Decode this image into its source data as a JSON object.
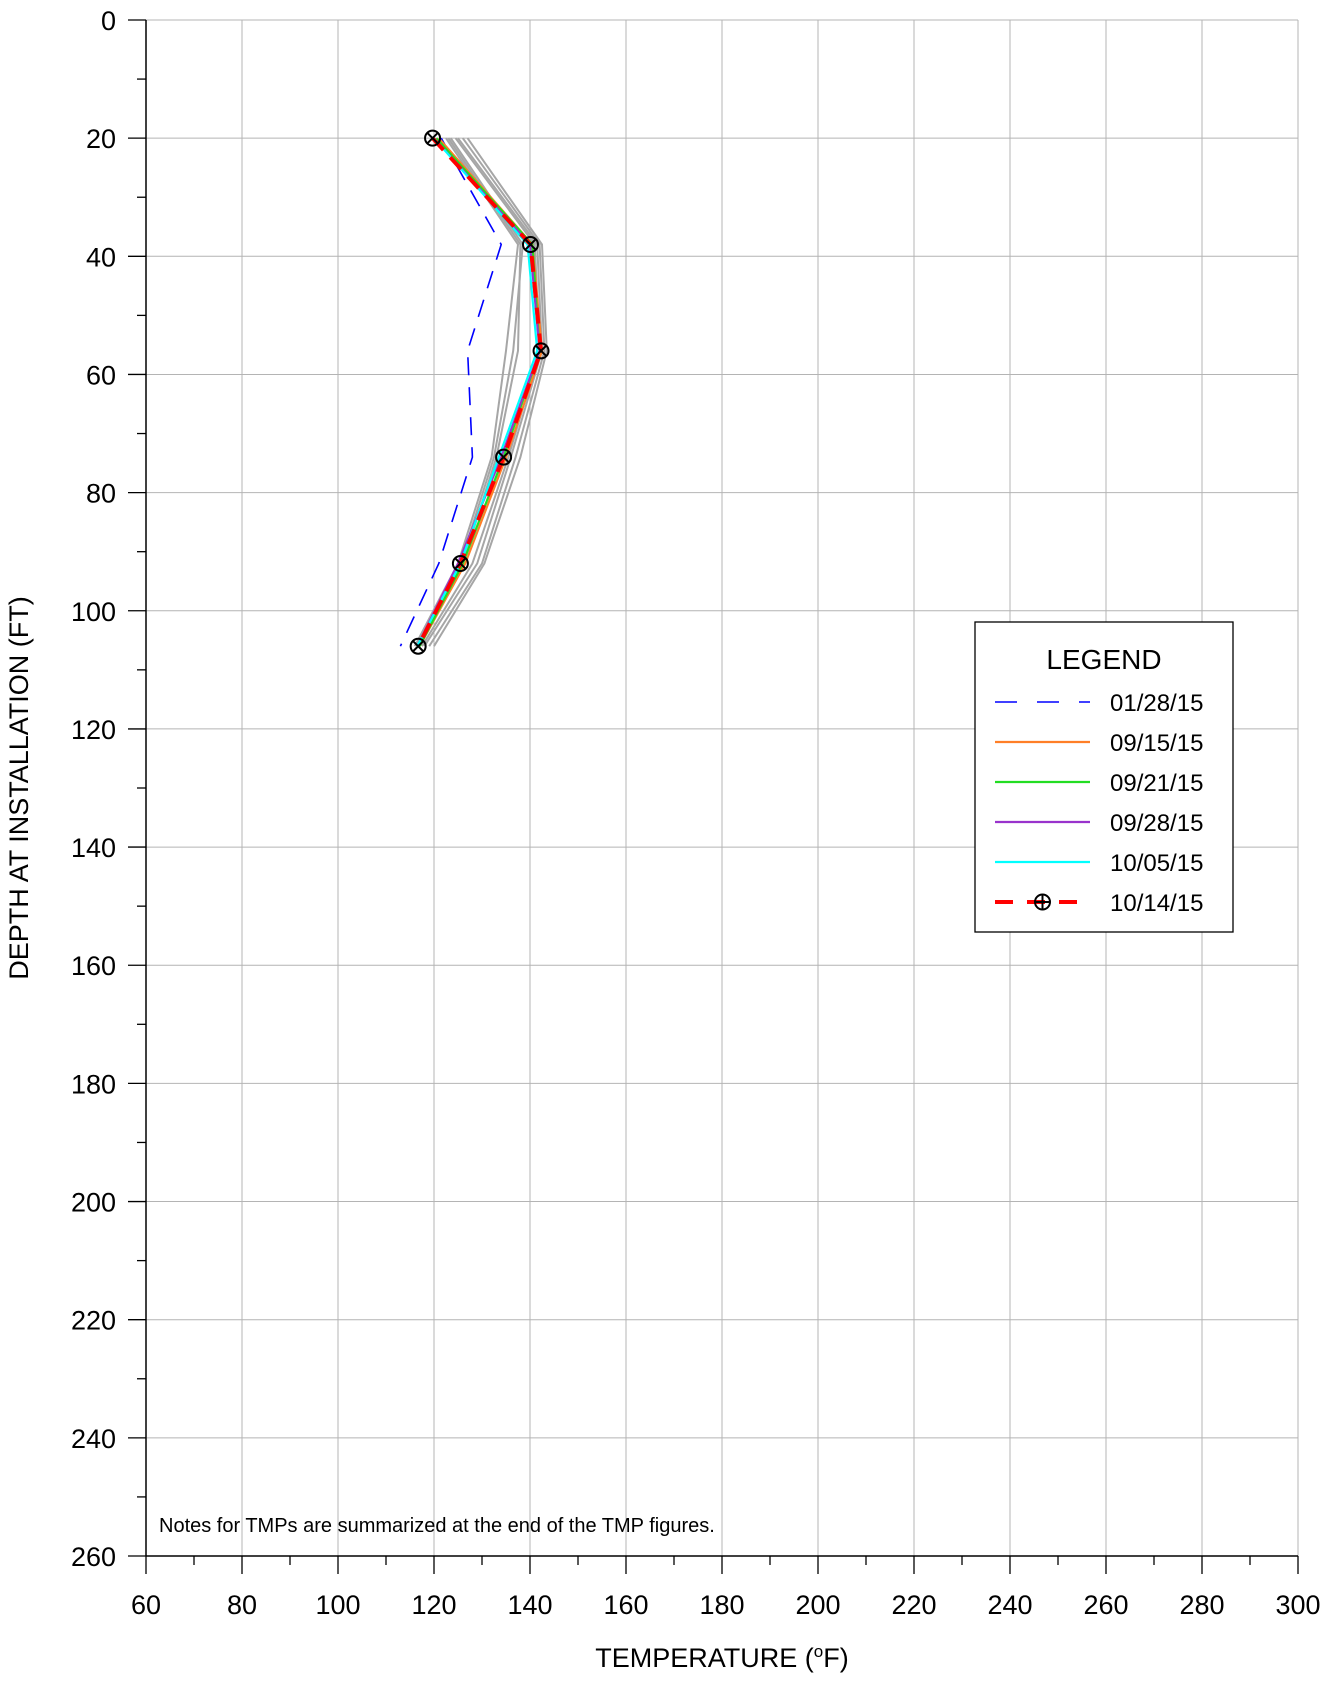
{
  "chart_data": {
    "type": "line",
    "xlabel_main": "TEMPERATURE (",
    "xlabel_sup": "o",
    "xlabel_end": "F)",
    "ylabel": "DEPTH AT INSTALLATION (FT)",
    "xlim": [
      60,
      300
    ],
    "ylim": [
      0,
      260
    ],
    "y_inverted": true,
    "x_ticks": [
      60,
      80,
      100,
      120,
      140,
      160,
      180,
      200,
      220,
      240,
      260,
      280,
      300
    ],
    "y_ticks": [
      0,
      20,
      40,
      60,
      80,
      100,
      120,
      140,
      160,
      180,
      200,
      220,
      240,
      260
    ],
    "grid": true,
    "legend_position": "right",
    "legend_title": "LEGEND",
    "note": "Notes for TMPs are summarized at the end of the TMP figures.",
    "depths": [
      20,
      38,
      56,
      74,
      92,
      106
    ],
    "background_series": [
      {
        "color": "#a6a6a6",
        "values": [
          125.0,
          141.5,
          142.5,
          136.0,
          129.0,
          118.0
        ]
      },
      {
        "color": "#a6a6a6",
        "values": [
          126.0,
          142.0,
          143.0,
          137.0,
          130.0,
          119.0
        ]
      },
      {
        "color": "#a6a6a6",
        "values": [
          127.0,
          142.5,
          143.5,
          138.0,
          130.5,
          120.0
        ]
      },
      {
        "color": "#a6a6a6",
        "values": [
          124.5,
          141.0,
          142.0,
          135.5,
          128.0,
          117.5
        ]
      },
      {
        "color": "#a6a6a6",
        "values": [
          123.0,
          138.0,
          137.5,
          133.0,
          126.0,
          117.0
        ]
      },
      {
        "color": "#a6a6a6",
        "values": [
          123.5,
          138.5,
          136.5,
          132.5,
          125.5,
          116.5
        ]
      },
      {
        "color": "#a6a6a6",
        "values": [
          122.5,
          137.5,
          135.0,
          132.0,
          125.0,
          116.0
        ]
      }
    ],
    "series": [
      {
        "name": "01/28/15",
        "color": "#0000ff",
        "dash": "dashed",
        "values": [
          121.5,
          134.0,
          127.0,
          128.0,
          121.0,
          113.0
        ]
      },
      {
        "name": "09/15/15",
        "color": "#ff7f27",
        "dash": "solid",
        "values": [
          121.0,
          140.5,
          142.5,
          135.0,
          126.5,
          117.0
        ]
      },
      {
        "name": "09/21/15",
        "color": "#22dd22",
        "dash": "solid",
        "values": [
          120.5,
          140.5,
          142.0,
          134.5,
          126.0,
          117.0
        ]
      },
      {
        "name": "09/28/15",
        "color": "#9933cc",
        "dash": "solid",
        "values": [
          120.0,
          140.0,
          142.0,
          134.0,
          125.0,
          116.5
        ]
      },
      {
        "name": "10/05/15",
        "color": "#00ffff",
        "dash": "solid",
        "values": [
          120.0,
          139.5,
          141.5,
          133.5,
          125.5,
          116.5
        ]
      },
      {
        "name": "10/14/15",
        "color": "#ff0000",
        "dash": "heavy-dashed",
        "marker": "circled-cross",
        "values": [
          119.7,
          140.1,
          142.3,
          134.5,
          125.5,
          116.7
        ]
      }
    ]
  }
}
